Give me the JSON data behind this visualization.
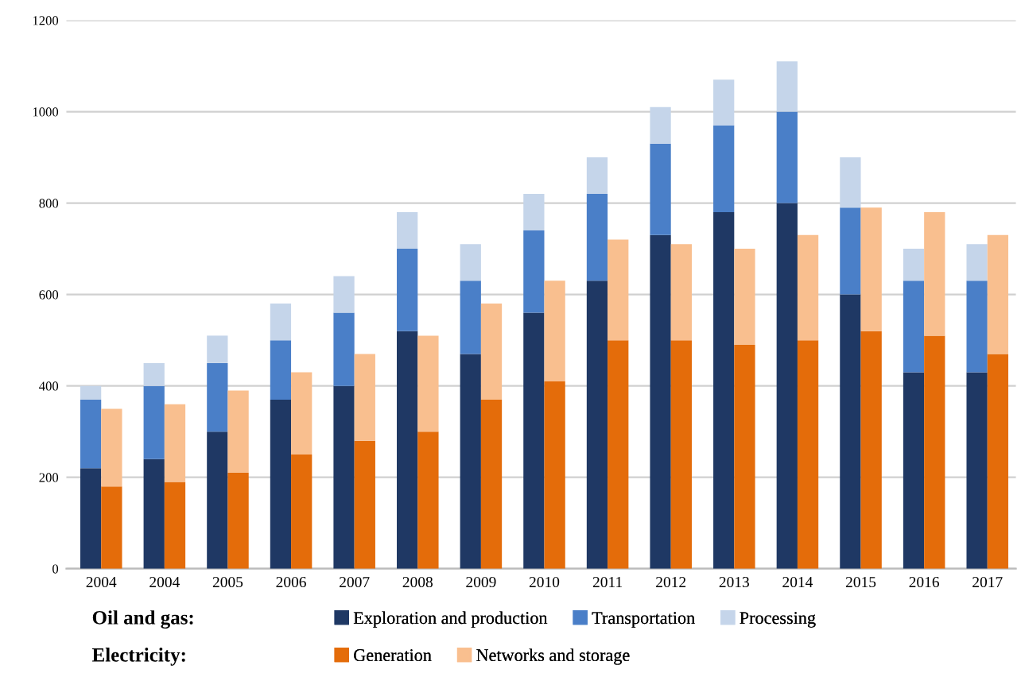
{
  "chart_data": {
    "type": "bar",
    "categories": [
      "2004",
      "2004",
      "2005",
      "2006",
      "2007",
      "2008",
      "2009",
      "2010",
      "2011",
      "2012",
      "2013",
      "2014",
      "2015",
      "2016",
      "2017"
    ],
    "series": [
      {
        "name": "Exploration and production",
        "color": "#1f3864",
        "base": [
          0,
          0,
          0,
          0,
          0,
          0,
          0,
          0,
          0,
          0,
          0,
          0,
          0,
          0,
          0
        ],
        "values": [
          220,
          240,
          300,
          370,
          400,
          520,
          470,
          560,
          630,
          730,
          780,
          800,
          600,
          430,
          430
        ]
      },
      {
        "name": "Transportation",
        "color": "#4a7fc8",
        "base": [
          220,
          240,
          300,
          370,
          400,
          520,
          470,
          560,
          630,
          730,
          780,
          800,
          600,
          430,
          430
        ],
        "values": [
          150,
          160,
          150,
          130,
          160,
          180,
          160,
          180,
          190,
          200,
          190,
          200,
          190,
          200,
          200
        ]
      },
      {
        "name": "Processing",
        "color": "#c5d5ea",
        "base": [
          370,
          400,
          450,
          500,
          560,
          700,
          630,
          740,
          820,
          930,
          970,
          1000,
          790,
          630,
          630
        ],
        "values": [
          30,
          50,
          60,
          80,
          80,
          80,
          80,
          80,
          80,
          80,
          100,
          110,
          110,
          70,
          80
        ]
      },
      {
        "name": "Generation",
        "color": "#e46c0a",
        "base": [
          0,
          0,
          0,
          0,
          0,
          0,
          0,
          0,
          0,
          0,
          0,
          0,
          0,
          0,
          0
        ],
        "values": [
          180,
          190,
          210,
          250,
          280,
          300,
          370,
          410,
          500,
          500,
          490,
          500,
          520,
          510,
          470
        ]
      },
      {
        "name": "Networks and storage",
        "color": "#f9bf8f",
        "base": [
          180,
          190,
          210,
          250,
          280,
          300,
          370,
          410,
          500,
          500,
          490,
          500,
          520,
          510,
          470
        ],
        "values": [
          170,
          170,
          180,
          180,
          190,
          210,
          210,
          220,
          220,
          210,
          210,
          230,
          270,
          270,
          260
        ]
      }
    ],
    "annotations": [
      "Oil and gas:",
      "Electricity:"
    ],
    "ylim": [
      0,
      1200
    ],
    "yticks": [
      0,
      200,
      400,
      600,
      800,
      1000,
      1200
    ],
    "grid": "y",
    "legend": "bottom"
  }
}
